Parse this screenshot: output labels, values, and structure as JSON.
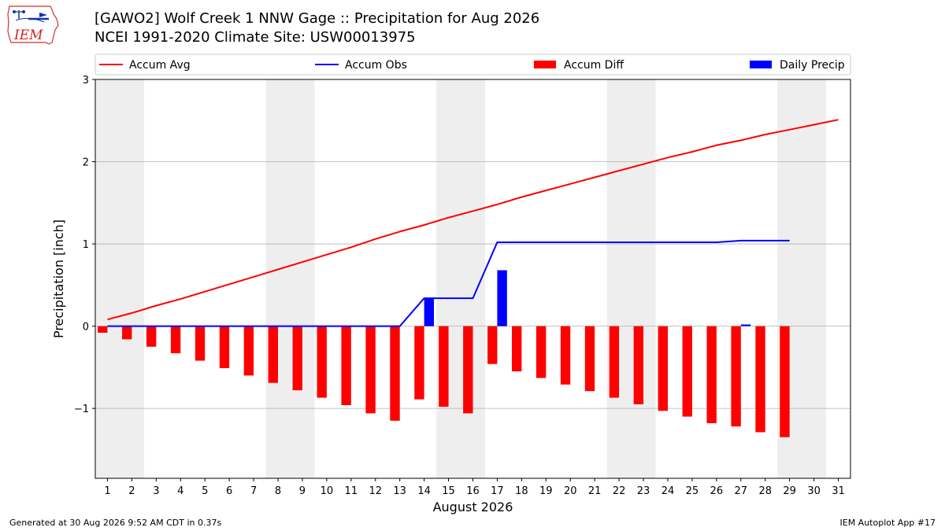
{
  "header": {
    "title_line1": "[GAWO2] Wolf Creek 1 NNW Gage :: Precipitation for Aug 2026",
    "title_line2": "NCEI 1991-2020 Climate Site: USW00013975"
  },
  "logo": {
    "text": "IEM",
    "icon": "iem-iowa-logo-icon"
  },
  "footer": {
    "generated": "Generated at 30 Aug 2026 9:52 AM CDT in 0.37s",
    "app": "IEM Autoplot App #17"
  },
  "colors": {
    "accum_avg": "#ff0000",
    "accum_obs": "#0000ff",
    "accum_diff": "#ff0000",
    "daily_precip": "#0000ff",
    "weekend_shade": "#eeeeee",
    "grid": "#b0b0b0"
  },
  "chart_data": {
    "type": "bar",
    "xlabel": "August 2026",
    "ylabel": "Precipitation [inch]",
    "xlim": [
      0.5,
      31.5
    ],
    "ylim": [
      -1.85,
      3.0
    ],
    "yticks": [
      -1,
      0,
      1,
      2,
      3
    ],
    "ytick_labels": [
      "−1",
      "0",
      "1",
      "2",
      "3"
    ],
    "xticks": [
      1,
      2,
      3,
      4,
      5,
      6,
      7,
      8,
      9,
      10,
      11,
      12,
      13,
      14,
      15,
      16,
      17,
      18,
      19,
      20,
      21,
      22,
      23,
      24,
      25,
      26,
      27,
      28,
      29,
      30,
      31
    ],
    "grid": "horizontal",
    "legend_position": "top",
    "weekend_shading": [
      [
        1,
        2
      ],
      [
        8,
        9
      ],
      [
        15,
        16
      ],
      [
        22,
        23
      ],
      [
        29,
        30
      ]
    ],
    "legend": [
      "Accum Avg",
      "Accum Obs",
      "Accum Diff",
      "Daily Precip"
    ],
    "series": [
      {
        "name": "Accum Avg",
        "kind": "line",
        "x": [
          1,
          2,
          3,
          4,
          5,
          6,
          7,
          8,
          9,
          10,
          11,
          12,
          13,
          14,
          15,
          16,
          17,
          18,
          19,
          20,
          21,
          22,
          23,
          24,
          25,
          26,
          27,
          28,
          29,
          30,
          31
        ],
        "values": [
          0.08,
          0.16,
          0.25,
          0.33,
          0.42,
          0.51,
          0.6,
          0.69,
          0.78,
          0.87,
          0.96,
          1.06,
          1.15,
          1.23,
          1.32,
          1.4,
          1.48,
          1.57,
          1.65,
          1.73,
          1.81,
          1.89,
          1.97,
          2.05,
          2.12,
          2.2,
          2.26,
          2.33,
          2.39,
          2.45,
          2.51
        ]
      },
      {
        "name": "Accum Obs",
        "kind": "line",
        "x": [
          1,
          2,
          3,
          4,
          5,
          6,
          7,
          8,
          9,
          10,
          11,
          12,
          13,
          14,
          15,
          16,
          17,
          18,
          19,
          20,
          21,
          22,
          23,
          24,
          25,
          26,
          27,
          28,
          29
        ],
        "values": [
          0,
          0,
          0,
          0,
          0,
          0,
          0,
          0,
          0,
          0,
          0,
          0,
          0,
          0.34,
          0.34,
          0.34,
          1.02,
          1.02,
          1.02,
          1.02,
          1.02,
          1.02,
          1.02,
          1.02,
          1.02,
          1.02,
          1.04,
          1.04,
          1.04
        ]
      },
      {
        "name": "Accum Diff",
        "kind": "bar",
        "x": [
          1,
          2,
          3,
          4,
          5,
          6,
          7,
          8,
          9,
          10,
          11,
          12,
          13,
          14,
          15,
          16,
          17,
          18,
          19,
          20,
          21,
          22,
          23,
          24,
          25,
          26,
          27,
          28,
          29
        ],
        "values": [
          -0.08,
          -0.16,
          -0.25,
          -0.33,
          -0.42,
          -0.51,
          -0.6,
          -0.69,
          -0.78,
          -0.87,
          -0.96,
          -1.06,
          -1.15,
          -0.89,
          -0.98,
          -1.06,
          -0.46,
          -0.55,
          -0.63,
          -0.71,
          -0.79,
          -0.87,
          -0.95,
          -1.03,
          -1.1,
          -1.18,
          -1.22,
          -1.29,
          -1.35
        ]
      },
      {
        "name": "Daily Precip",
        "kind": "bar",
        "x": [
          14,
          17,
          27
        ],
        "values": [
          0.34,
          0.68,
          0.02
        ]
      }
    ]
  }
}
